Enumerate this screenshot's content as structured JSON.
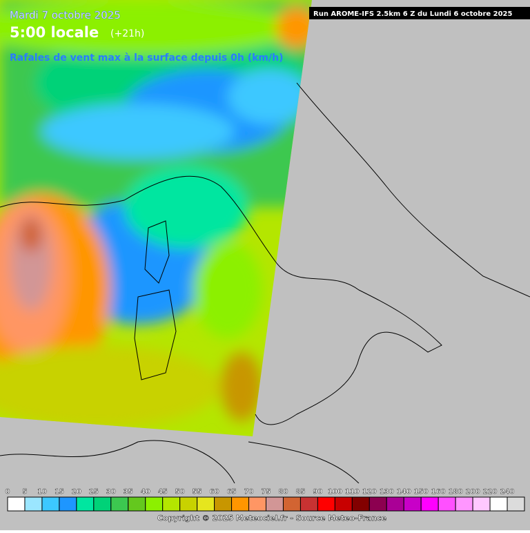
{
  "header": {
    "date": "Mardi 7 octobre 2025",
    "time": "5:00 locale",
    "lead": "(+21h)",
    "parameter": "Rafales de vent max à la surface depuis 0h (km/h)",
    "run": "Run AROME-IFS 2.5km 6 Z du Lundi 6 octobre 2025"
  },
  "legend": {
    "items": [
      {
        "value": 0,
        "color": "#ffffff"
      },
      {
        "value": 5,
        "color": "#9be6ff"
      },
      {
        "value": 10,
        "color": "#3cc8ff"
      },
      {
        "value": 15,
        "color": "#1e96ff"
      },
      {
        "value": 20,
        "color": "#00e6a0"
      },
      {
        "value": 25,
        "color": "#00d278"
      },
      {
        "value": 30,
        "color": "#3cc850"
      },
      {
        "value": 35,
        "color": "#64c81e"
      },
      {
        "value": 40,
        "color": "#8cf000"
      },
      {
        "value": 45,
        "color": "#b4e600"
      },
      {
        "value": 50,
        "color": "#c8d200"
      },
      {
        "value": 55,
        "color": "#e6e61e"
      },
      {
        "value": 60,
        "color": "#c89600"
      },
      {
        "value": 65,
        "color": "#ff9600"
      },
      {
        "value": 70,
        "color": "#ff9664"
      },
      {
        "value": 75,
        "color": "#d29696"
      },
      {
        "value": 80,
        "color": "#d26432"
      },
      {
        "value": 85,
        "color": "#c83232"
      },
      {
        "value": 90,
        "color": "#ff0000"
      },
      {
        "value": 100,
        "color": "#c80000"
      },
      {
        "value": 110,
        "color": "#820000"
      },
      {
        "value": 120,
        "color": "#8c0050"
      },
      {
        "value": 130,
        "color": "#aa0096"
      },
      {
        "value": 140,
        "color": "#c800c8"
      },
      {
        "value": 150,
        "color": "#ff00ff"
      },
      {
        "value": 160,
        "color": "#ff50ff"
      },
      {
        "value": 180,
        "color": "#ff96ff"
      },
      {
        "value": 200,
        "color": "#ffc8ff"
      },
      {
        "value": 220,
        "color": "#ffffff"
      },
      {
        "value": 240,
        "color": "#dcdcdc"
      }
    ]
  },
  "footer": {
    "copyright": "Copyright © 2025 Meteociel.fr - Source Meteo-France"
  }
}
